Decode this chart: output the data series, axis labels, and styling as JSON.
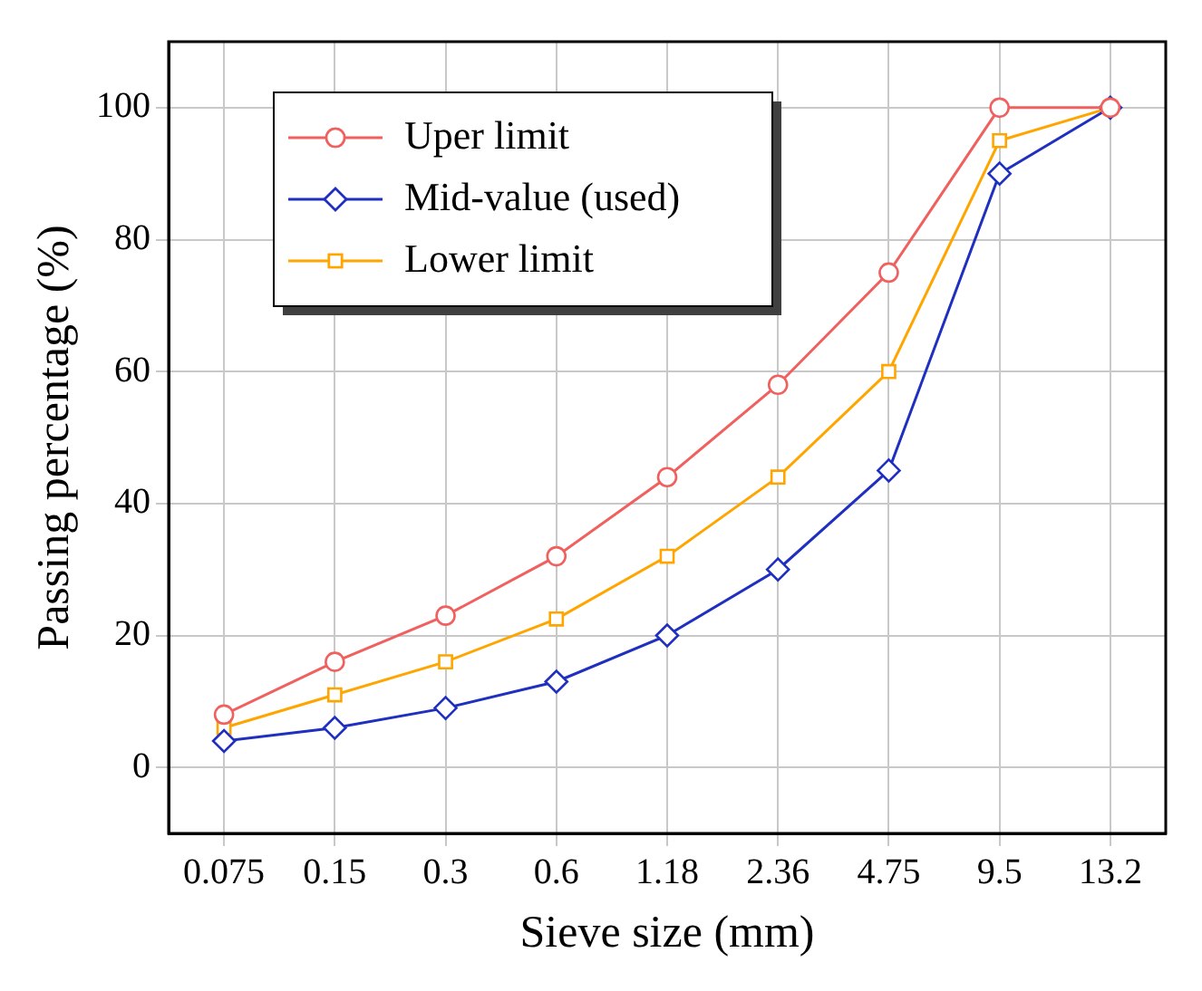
{
  "chart_data": {
    "type": "line",
    "xlabel": "Sieve size (mm)",
    "ylabel": "Passing percentage (%)",
    "categories": [
      "0.075",
      "0.15",
      "0.3",
      "0.6",
      "1.18",
      "2.36",
      "4.75",
      "9.5",
      "13.2"
    ],
    "series": [
      {
        "name": "Uper limit",
        "color": "#f0605f",
        "marker": "circle",
        "values": [
          8,
          16,
          23,
          32,
          44,
          58,
          75,
          100,
          100
        ]
      },
      {
        "name": "Mid-value (used)",
        "color": "#1f2fbf",
        "marker": "diamond",
        "values": [
          4,
          6,
          9,
          13,
          20,
          30,
          45,
          90,
          100
        ]
      },
      {
        "name": "Lower limit",
        "color": "#ffa500",
        "marker": "square",
        "values": [
          6,
          11,
          16,
          22.5,
          32,
          44,
          60,
          95,
          100
        ]
      }
    ],
    "ylim": [
      -10,
      110
    ],
    "yticks": [
      0,
      20,
      40,
      60,
      80,
      100
    ],
    "grid": true,
    "legend": "top left",
    "line_style": "solid"
  }
}
